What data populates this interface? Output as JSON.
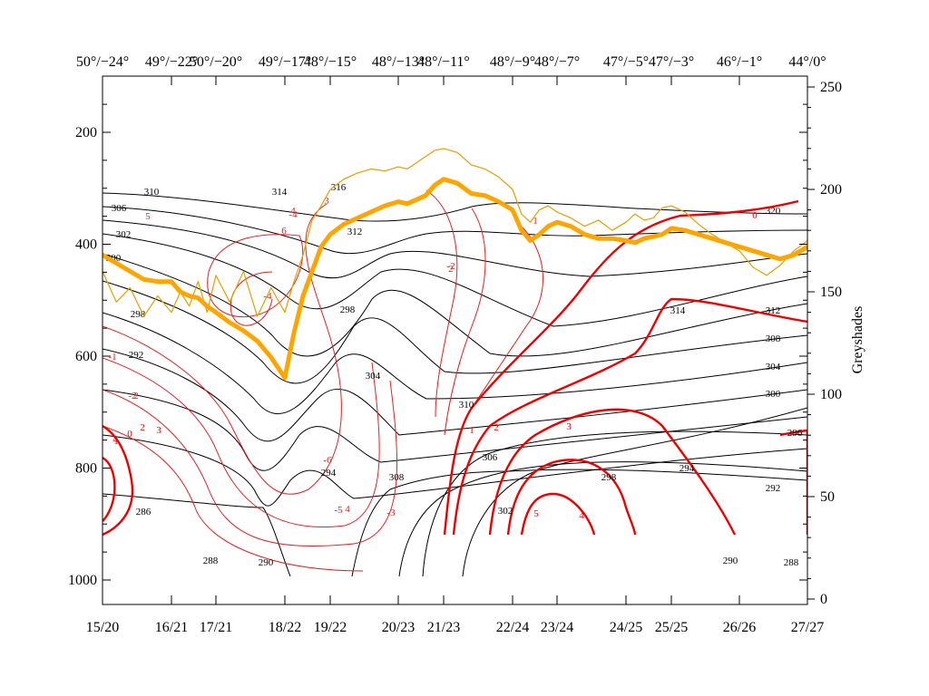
{
  "chart_data": {
    "type": "line",
    "title": "",
    "left_axis": {
      "label": "",
      "ticks": [
        200,
        400,
        600,
        800,
        1000
      ],
      "range_top": 100,
      "range_bottom": 1050
    },
    "right_axis": {
      "label": "Greyshades",
      "ticks": [
        0,
        50,
        100,
        150,
        200,
        250
      ],
      "range": [
        0,
        255
      ]
    },
    "bottom_ticks": [
      "15/20",
      "16/21",
      "17/21",
      "18/22",
      "19/22",
      "20/23",
      "21/23",
      "22/24",
      "23/24",
      "24/25",
      "25/25",
      "26/26",
      "27/27"
    ],
    "top_ticks": [
      "50°/−24°",
      "49°/−22°",
      "50°/−20°",
      "49°/−17°",
      "48°/−15°",
      "48°/−13°",
      "48°/−11°",
      "48°/−9°",
      "48°/−7°",
      "47°/−5°",
      "47°/−3°",
      "46°/−1°",
      "44°/0°"
    ],
    "theta_labels": [
      "310",
      "314",
      "316",
      "306",
      "302",
      "300",
      "298",
      "292",
      "286",
      "288",
      "290",
      "294",
      "298",
      "308",
      "304",
      "312",
      "320",
      "310",
      "306",
      "302",
      "298",
      "294",
      "290",
      "288",
      "314",
      "312",
      "308",
      "304",
      "300",
      "296",
      "292"
    ],
    "thin_red_labels": [
      "3",
      "4",
      "5",
      "6",
      "2",
      "1",
      "-1",
      "-2",
      "-3",
      "-4",
      "-6",
      "-5",
      "-4",
      "-2",
      "2",
      "4"
    ],
    "thick_red_labels": [
      "0",
      "1",
      "2",
      "3",
      "4",
      "5",
      "1",
      "2",
      "3",
      "4",
      "0"
    ],
    "series": [
      {
        "name": "Greyshades (thick, smoothed)",
        "color": "#FFA500",
        "x": [
          0,
          0.2,
          0.4,
          0.6,
          0.8,
          1,
          1.2,
          1.4,
          1.6,
          1.8,
          2,
          2.2,
          2.4,
          2.6,
          2.8,
          3,
          3.2,
          3.4,
          3.6,
          3.8,
          4,
          4.2,
          4.4,
          4.6,
          4.8,
          5,
          5.2,
          5.4,
          5.6,
          5.8,
          6,
          6.2,
          6.4,
          6.6,
          6.8,
          7,
          7.2,
          7.4,
          7.6,
          7.8,
          8,
          8.2,
          8.4,
          8.6,
          8.8,
          9,
          9.2,
          9.4,
          9.6,
          9.8,
          10,
          10.2,
          10.4,
          10.6,
          10.8,
          11,
          11.2,
          11.4,
          11.6,
          11.8,
          12
        ],
        "values": [
          168,
          164,
          160,
          156,
          155,
          155,
          150,
          148,
          147,
          143,
          140,
          135,
          131,
          126,
          118,
          108,
          130,
          148,
          160,
          172,
          178,
          183,
          186,
          189,
          192,
          194,
          193,
          195,
          197,
          202,
          205,
          203,
          198,
          197,
          194,
          190,
          180,
          175,
          178,
          182,
          184,
          182,
          178,
          176,
          176,
          175,
          174,
          176,
          177,
          178,
          181,
          180,
          178,
          176,
          174,
          172,
          170,
          168,
          166,
          168,
          172
        ]
      },
      {
        "name": "Greyshades (thin, raw)",
        "color": "#E0A000",
        "x": [
          0,
          0.2,
          0.4,
          0.6,
          0.8,
          1,
          1.2,
          1.4,
          1.6,
          1.8,
          2,
          2.2,
          2.4,
          2.6,
          2.8,
          3,
          3.2,
          3.4,
          3.6,
          3.8,
          4,
          4.2,
          4.4,
          4.6,
          4.8,
          5,
          5.2,
          5.4,
          5.6,
          5.8,
          6,
          6.2,
          6.4,
          6.6,
          6.8,
          7,
          7.2,
          7.4,
          7.6,
          7.8,
          8,
          8.2,
          8.4,
          8.6,
          8.8,
          9,
          9.2,
          9.4,
          9.6,
          9.8,
          10,
          10.2,
          10.4,
          10.6,
          10.8,
          11,
          11.2,
          11.4,
          11.6,
          11.8,
          12
        ],
        "values": [
          160,
          145,
          152,
          138,
          148,
          140,
          150,
          143,
          155,
          140,
          158,
          145,
          160,
          138,
          152,
          140,
          155,
          168,
          185,
          192,
          200,
          205,
          208,
          210,
          209,
          211,
          210,
          213,
          216,
          219,
          220,
          218,
          212,
          210,
          206,
          200,
          188,
          184,
          190,
          192,
          189,
          186,
          182,
          185,
          180,
          184,
          188,
          185,
          186,
          191,
          192,
          189,
          183,
          178,
          174,
          170,
          162,
          158,
          163,
          170,
          175
        ]
      }
    ]
  }
}
